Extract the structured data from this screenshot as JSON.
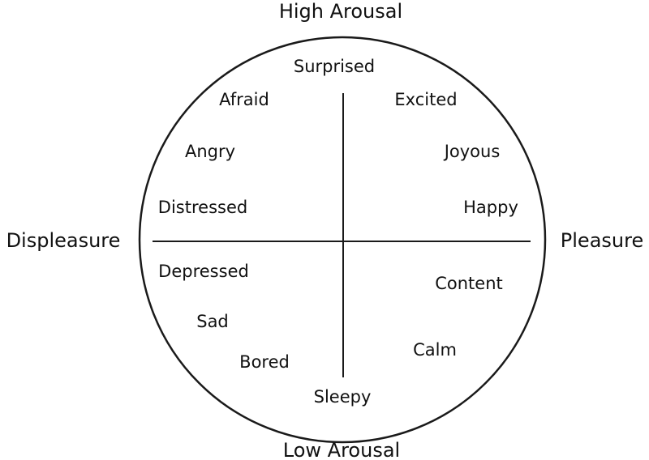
{
  "axes": {
    "top": "High Arousal",
    "bottom": "Low Arousal",
    "left": "Displeasure",
    "right": "Pleasure"
  },
  "emotions": {
    "surprised": "Surprised",
    "afraid": "Afraid",
    "excited": "Excited",
    "angry": "Angry",
    "joyous": "Joyous",
    "distressed": "Distressed",
    "happy": "Happy",
    "depressed": "Depressed",
    "content": "Content",
    "sad": "Sad",
    "calm": "Calm",
    "bored": "Bored",
    "sleepy": "Sleepy"
  },
  "colors": {
    "stroke": "#1a1a1a",
    "text": "#111111",
    "background": "#ffffff"
  }
}
